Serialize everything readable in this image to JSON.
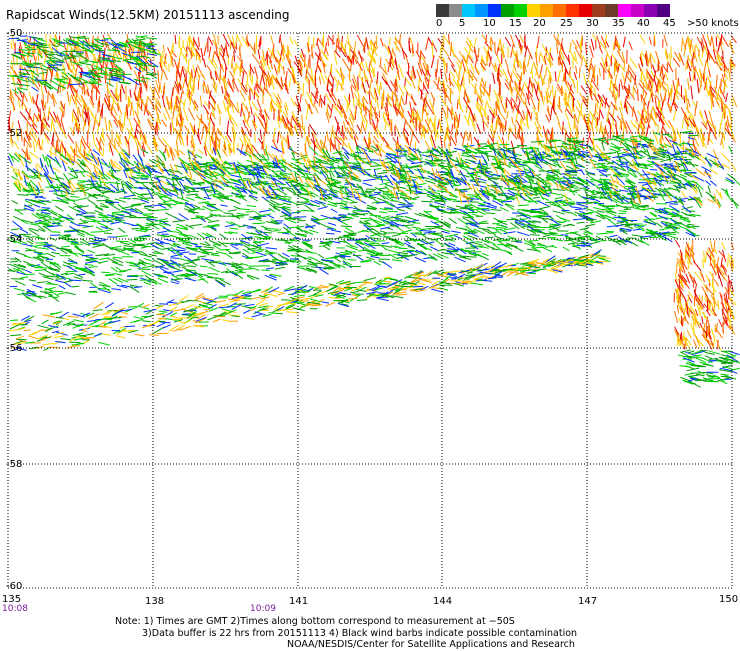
{
  "title": "Rapidscat Winds(12.5KM) 20151113 ascending",
  "legend": {
    "colors": [
      "#3a3a3a",
      "#8c8c8c",
      "#00c8ff",
      "#0096ff",
      "#0032ff",
      "#00a000",
      "#00d000",
      "#ffd200",
      "#ffa000",
      "#ff6e00",
      "#ff3200",
      "#e60000",
      "#a03c1e",
      "#6e3c28",
      "#ff00ff",
      "#c800c8",
      "#8c00b4",
      "#500080"
    ],
    "labels": [
      "0",
      "5",
      "10",
      "15",
      "20",
      "25",
      "30",
      "35",
      "40",
      "45",
      ">50 knots"
    ]
  },
  "map": {
    "lon_labels": [
      "135",
      "138",
      "141",
      "144",
      "147",
      "150"
    ],
    "lat_labels": [
      "-52",
      "-54",
      "-56",
      "-58",
      "-60"
    ],
    "top_lat_label": "-50",
    "time_labels": [
      "10:08",
      "10:09"
    ]
  },
  "notes": {
    "line1": "Note: 1) Times are GMT 2)Times along bottom correspond to measurement at −50S",
    "line2": "3)Data buffer is 22 hrs from 20151113 4) Black wind barbs indicate possible contamination",
    "line3": "NOAA/NESDIS/Center for Satellite Applications and Research"
  }
}
